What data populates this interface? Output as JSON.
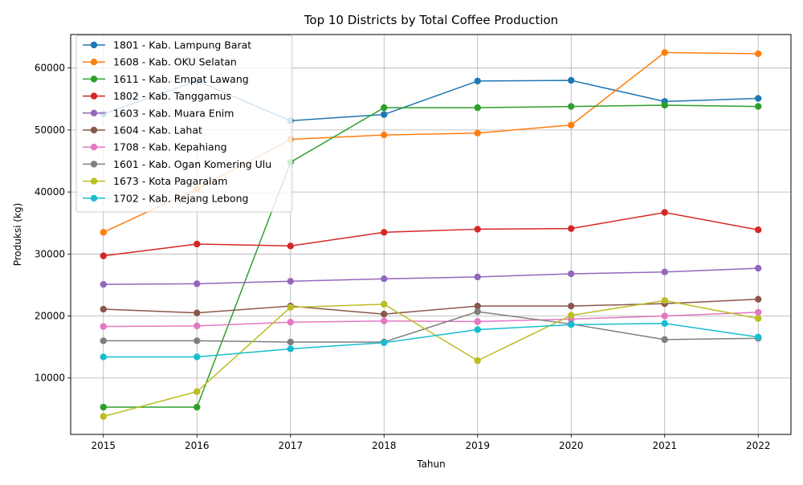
{
  "chart_data": {
    "type": "line",
    "title": "Top 10 Districts by Total Coffee Production",
    "xlabel": "Tahun",
    "ylabel": "Produksi (kg)",
    "x": [
      2015,
      2016,
      2017,
      2018,
      2019,
      2020,
      2021,
      2022
    ],
    "x_tick_labels": [
      "2015",
      "2016",
      "2017",
      "2018",
      "2019",
      "2020",
      "2021",
      "2022"
    ],
    "xlim": [
      2014.65,
      2022.35
    ],
    "ylim": [
      900,
      65400
    ],
    "y_ticks": [
      10000,
      20000,
      30000,
      40000,
      50000,
      60000
    ],
    "y_tick_labels": [
      "10000",
      "20000",
      "30000",
      "40000",
      "50000",
      "60000"
    ],
    "grid": true,
    "legend_position": "top-left",
    "marker": "circle",
    "series": [
      {
        "name": "1801 - Kab. Lampung Barat",
        "color": "#1f77b4",
        "values": [
          52600,
          57900,
          51500,
          52500,
          57900,
          58000,
          54600,
          55100
        ]
      },
      {
        "name": "1608 - Kab. OKU Selatan",
        "color": "#ff7f0e",
        "values": [
          33500,
          40500,
          48500,
          49200,
          49500,
          50800,
          62500,
          62300
        ]
      },
      {
        "name": "1611 - Kab. Empat Lawang",
        "color": "#2ca02c",
        "values": [
          5300,
          5300,
          44800,
          53600,
          53600,
          53800,
          54000,
          53800
        ]
      },
      {
        "name": "1802 - Kab. Tanggamus",
        "color": "#d62728",
        "values": [
          29700,
          31600,
          31300,
          33500,
          34000,
          34100,
          36700,
          33900
        ]
      },
      {
        "name": "1603 - Kab. Muara Enim",
        "color": "#9467bd",
        "values": [
          25100,
          25200,
          25600,
          26000,
          26300,
          26800,
          27100,
          27700
        ]
      },
      {
        "name": "1604 - Kab. Lahat",
        "color": "#8c564b",
        "values": [
          21100,
          20500,
          21600,
          20300,
          21600,
          21600,
          22000,
          22700
        ]
      },
      {
        "name": "1708 - Kab. Kepahiang",
        "color": "#e377c2",
        "values": [
          18300,
          18400,
          19000,
          19200,
          19100,
          19500,
          20000,
          20600
        ]
      },
      {
        "name": "1601 - Kab. Ogan Komering Ulu",
        "color": "#7f7f7f",
        "values": [
          16000,
          16000,
          15800,
          15800,
          20700,
          18700,
          16200,
          16400
        ]
      },
      {
        "name": "1673 - Kota Pagaralam",
        "color": "#bcbd22",
        "values": [
          3800,
          7800,
          21400,
          21900,
          12800,
          20100,
          22500,
          19600
        ]
      },
      {
        "name": "1702 - Kab. Rejang Lebong",
        "color": "#17becf",
        "values": [
          13400,
          13400,
          14700,
          15700,
          17800,
          18600,
          18800,
          16600
        ]
      }
    ]
  }
}
